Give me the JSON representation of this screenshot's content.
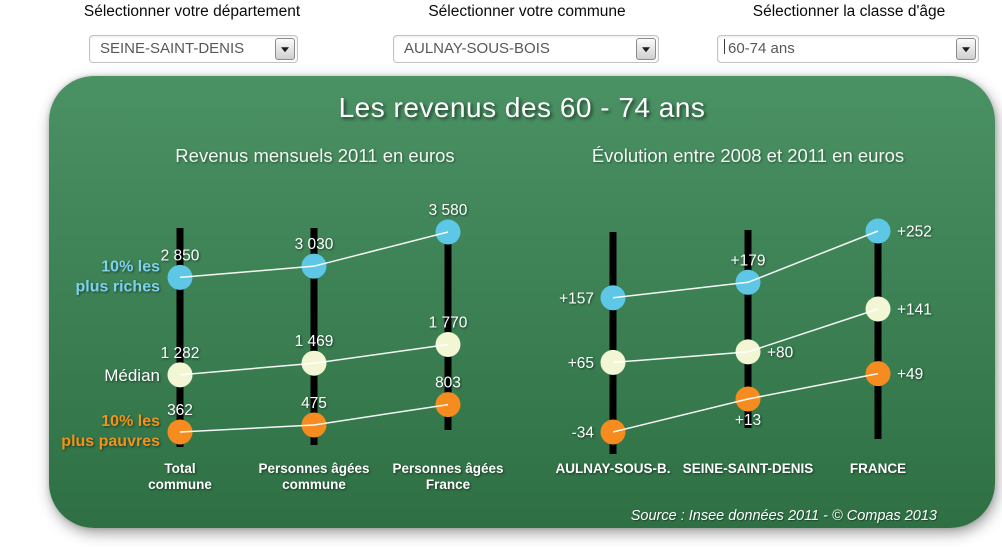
{
  "filters": {
    "departement": {
      "label": "Sélectionner votre département",
      "value": "SEINE-SAINT-DENIS"
    },
    "commune": {
      "label": "Sélectionner votre commune",
      "value": "AULNAY-SOUS-BOIS"
    },
    "age_class": {
      "label": "Sélectionner la classe d'âge",
      "value": "60-74 ans"
    }
  },
  "panel": {
    "title": "Les revenus des 60 - 74 ans",
    "source": "Source : Insee données 2011 - © Compas 2013",
    "background_top": "#4a9164",
    "background_bottom": "#2e7044"
  },
  "chart_data": [
    {
      "type": "scatter",
      "title": "Revenus mensuels 2011 en euros",
      "categories": [
        "Total\ncommune",
        "Personnes âgées\ncommune",
        "Personnes âgées\nFrance"
      ],
      "series": [
        {
          "name": "10% les plus riches",
          "color": "#5ec7e6",
          "label_color": "#7dd2ec",
          "values": [
            2850,
            3030,
            3580
          ],
          "labels": [
            "2 850",
            "3 030",
            "3 580"
          ]
        },
        {
          "name": "Médian",
          "color": "#f3f6d4",
          "label_color": "#ffffff",
          "values": [
            1282,
            1469,
            1770
          ],
          "labels": [
            "1 282",
            "1 469",
            "1 770"
          ]
        },
        {
          "name": "10% les plus pauvres",
          "color": "#f68b1f",
          "label_color": "#f39318",
          "values": [
            362,
            475,
            803
          ],
          "labels": [
            "362",
            "475",
            "803"
          ]
        }
      ],
      "legend_position": "left",
      "grid": false,
      "connectors": "white lines between points",
      "ylim": [
        250,
        3700
      ]
    },
    {
      "type": "scatter",
      "title": "Évolution entre 2008 et 2011 en euros",
      "categories": [
        "AULNAY-SOUS-B.",
        "SEINE-SAINT-DENIS",
        "FRANCE"
      ],
      "series": [
        {
          "name": "10% les plus riches",
          "color": "#5ec7e6",
          "label_color": "#7dd2ec",
          "values": [
            157,
            179,
            252
          ],
          "labels": [
            "+157",
            "+179",
            "+252"
          ]
        },
        {
          "name": "Médian",
          "color": "#f3f6d4",
          "label_color": "#ffffff",
          "values": [
            65,
            80,
            141
          ],
          "labels": [
            "+65",
            "+80",
            "+141"
          ]
        },
        {
          "name": "10% les plus pauvres",
          "color": "#f68b1f",
          "label_color": "#f39318",
          "values": [
            -34,
            13,
            49
          ],
          "labels": [
            "-34",
            "+13",
            "+49"
          ]
        }
      ],
      "grid": false,
      "connectors": "white lines between points",
      "ylim": [
        -60,
        290
      ]
    }
  ]
}
